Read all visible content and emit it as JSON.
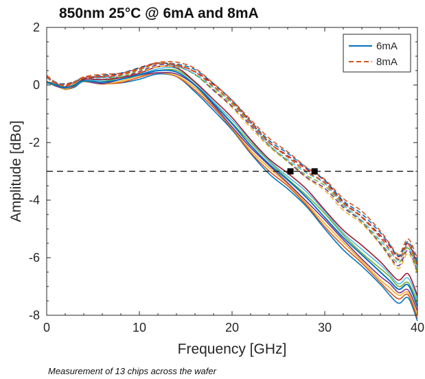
{
  "chart_data": {
    "type": "line",
    "title": "850nm 25°C @ 6mA and 8mA",
    "xlabel": "Frequency [GHz]",
    "ylabel": "Amplitude [dBo]",
    "xlim": [
      0,
      40
    ],
    "ylim": [
      -8,
      2
    ],
    "xticks": [
      "0",
      "10",
      "20",
      "30",
      "40"
    ],
    "yticks": [
      "2",
      "0",
      "-2",
      "-4",
      "-6",
      "-8"
    ],
    "grid": false,
    "legend": {
      "position": "top-right",
      "entries": [
        "6mA",
        "8mA"
      ]
    },
    "x": [
      0,
      1,
      2,
      3,
      4,
      6,
      8,
      10,
      12,
      14,
      16,
      18,
      20,
      22,
      24,
      26,
      28,
      30,
      32,
      34,
      36,
      37,
      38,
      39,
      40
    ],
    "series": [
      {
        "name": "6mA",
        "values": [
          0.1,
          0.0,
          -0.1,
          0.0,
          0.15,
          0.1,
          0.2,
          0.35,
          0.5,
          0.45,
          0.0,
          -0.65,
          -1.35,
          -2.1,
          -2.75,
          -3.3,
          -3.9,
          -4.6,
          -5.3,
          -5.9,
          -6.5,
          -6.8,
          -7.1,
          -6.95,
          -7.7
        ]
      },
      {
        "name": "8mA",
        "values": [
          0.3,
          0.05,
          0.0,
          0.1,
          0.25,
          0.3,
          0.35,
          0.55,
          0.75,
          0.7,
          0.45,
          -0.05,
          -0.6,
          -1.3,
          -2.0,
          -2.5,
          -3.0,
          -3.4,
          -4.1,
          -4.6,
          -5.3,
          -5.7,
          -6.05,
          -5.55,
          -6.3
        ]
      }
    ],
    "reference_line": {
      "y": -3
    },
    "markers": [
      {
        "x": 26.3,
        "y": -3
      },
      {
        "x": 28.9,
        "y": -3
      }
    ]
  },
  "caption": "Measurement of 13 chips across the wafer",
  "colors": {
    "6mA": "#0072BD",
    "8mA": "#D95319",
    "chip_palette": [
      "#0072BD",
      "#D95319",
      "#EDB120",
      "#7E2F8E",
      "#77AC30",
      "#4DBEEE",
      "#A2142F"
    ]
  }
}
